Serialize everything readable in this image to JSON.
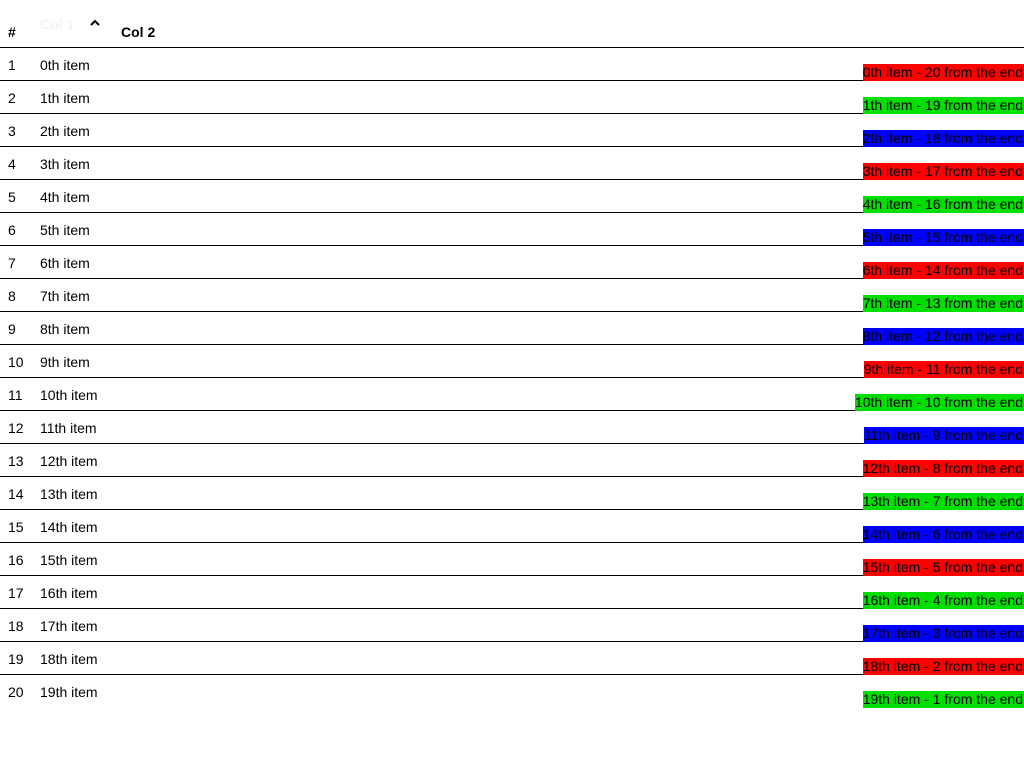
{
  "table": {
    "headers": {
      "index": "#",
      "col1": "Col 1",
      "col2": "Col 2",
      "sort_icon": "chevron-up-icon"
    },
    "colors": {
      "red": "#ff0000",
      "green": "#00e000",
      "blue": "#0000ff"
    },
    "rows": [
      {
        "index": "1",
        "col1": "0th item",
        "col2": "0th item - 20 from the end",
        "color": "#ff0000"
      },
      {
        "index": "2",
        "col1": "1th item",
        "col2": "1th item - 19 from the end",
        "color": "#00e000"
      },
      {
        "index": "3",
        "col1": "2th item",
        "col2": "2th item - 18 from the end",
        "color": "#0000ff"
      },
      {
        "index": "4",
        "col1": "3th item",
        "col2": "3th item - 17 from the end",
        "color": "#ff0000"
      },
      {
        "index": "5",
        "col1": "4th item",
        "col2": "4th item - 16 from the end",
        "color": "#00e000"
      },
      {
        "index": "6",
        "col1": "5th item",
        "col2": "5th item - 15 from the end",
        "color": "#0000ff"
      },
      {
        "index": "7",
        "col1": "6th item",
        "col2": "6th item - 14 from the end",
        "color": "#ff0000"
      },
      {
        "index": "8",
        "col1": "7th item",
        "col2": "7th item - 13 from the end",
        "color": "#00e000"
      },
      {
        "index": "9",
        "col1": "8th item",
        "col2": "8th item - 12 from the end",
        "color": "#0000ff"
      },
      {
        "index": "10",
        "col1": "9th item",
        "col2": "9th item - 11 from the end",
        "color": "#ff0000"
      },
      {
        "index": "11",
        "col1": "10th item",
        "col2": "10th item - 10 from the end",
        "color": "#00e000"
      },
      {
        "index": "12",
        "col1": "11th item",
        "col2": "11th item - 9 from the end",
        "color": "#0000ff"
      },
      {
        "index": "13",
        "col1": "12th item",
        "col2": "12th item - 8 from the end",
        "color": "#ff0000"
      },
      {
        "index": "14",
        "col1": "13th item",
        "col2": "13th item - 7 from the end",
        "color": "#00e000"
      },
      {
        "index": "15",
        "col1": "14th item",
        "col2": "14th item - 6 from the end",
        "color": "#0000ff"
      },
      {
        "index": "16",
        "col1": "15th item",
        "col2": "15th item - 5 from the end",
        "color": "#ff0000"
      },
      {
        "index": "17",
        "col1": "16th item",
        "col2": "16th item - 4 from the end",
        "color": "#00e000"
      },
      {
        "index": "18",
        "col1": "17th item",
        "col2": "17th item - 3 from the end",
        "color": "#0000ff"
      },
      {
        "index": "19",
        "col1": "18th item",
        "col2": "18th item - 2 from the end",
        "color": "#ff0000"
      },
      {
        "index": "20",
        "col1": "19th item",
        "col2": "19th item - 1 from the end",
        "color": "#00e000"
      }
    ]
  }
}
